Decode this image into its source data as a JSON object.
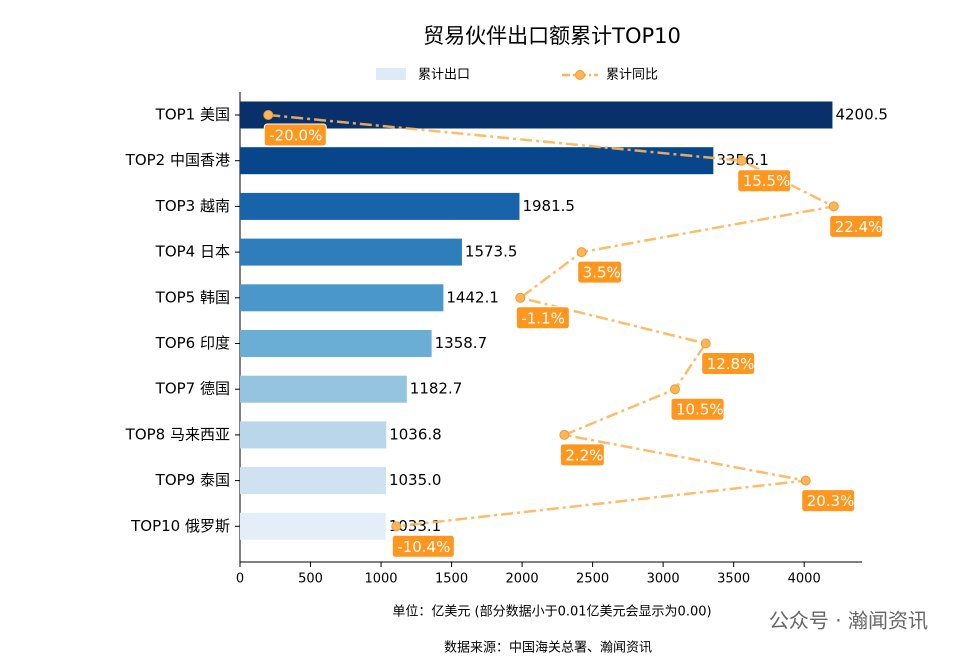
{
  "chart_data": {
    "type": "bar",
    "title": "贸易伙伴出口额累计TOP10",
    "categories": [
      "TOP1 美国",
      "TOP2 中国香港",
      "TOP3 越南",
      "TOP4 日本",
      "TOP5 韩国",
      "TOP6 印度",
      "TOP7 德国",
      "TOP8 马来西亚",
      "TOP9 泰国",
      "TOP10 俄罗斯"
    ],
    "series": [
      {
        "name": "累计出口",
        "type": "bar",
        "legend_color": "#deebf7",
        "colors": [
          "#08306b",
          "#08468c",
          "#1764ab",
          "#2e7ebc",
          "#4a98c9",
          "#6aaed6",
          "#94c4df",
          "#b9d6ea",
          "#d0e1f2",
          "#e3eef9"
        ],
        "values": [
          4200.5,
          3356.1,
          1981.5,
          1573.5,
          1442.1,
          1358.7,
          1182.7,
          1036.8,
          1035.0,
          1033.1
        ],
        "value_labels": [
          "4200.5",
          "3356.1",
          "1981.5",
          "1573.5",
          "1442.1",
          "1358.7",
          "1182.7",
          "1036.8",
          "1035.0",
          "1033.1"
        ]
      },
      {
        "name": "累计同比",
        "type": "line",
        "axis": "x2",
        "color": "#fdb55a",
        "label_color": "#ff961e",
        "values": [
          -20.0,
          15.5,
          22.4,
          3.5,
          -1.1,
          12.8,
          10.5,
          2.2,
          20.3,
          -10.4
        ],
        "value_labels": [
          "-20.0%",
          "15.5%",
          "22.4%",
          "3.5%",
          "-1.1%",
          "12.8%",
          "10.5%",
          "2.2%",
          "20.3%",
          "-10.4%"
        ]
      }
    ],
    "xlim": [
      0,
      4410
    ],
    "xticks": [
      0,
      500,
      1000,
      1500,
      2000,
      2500,
      3000,
      3500,
      4000
    ],
    "x2lim": [
      -22.12,
      24.52
    ],
    "xlabel": "单位：亿美元  (部分数据小于0.01亿美元会显示为0.00)",
    "source": "数据来源：中国海关总署、瀚闻资讯",
    "watermark": "公众号 · 瀚闻资讯"
  }
}
